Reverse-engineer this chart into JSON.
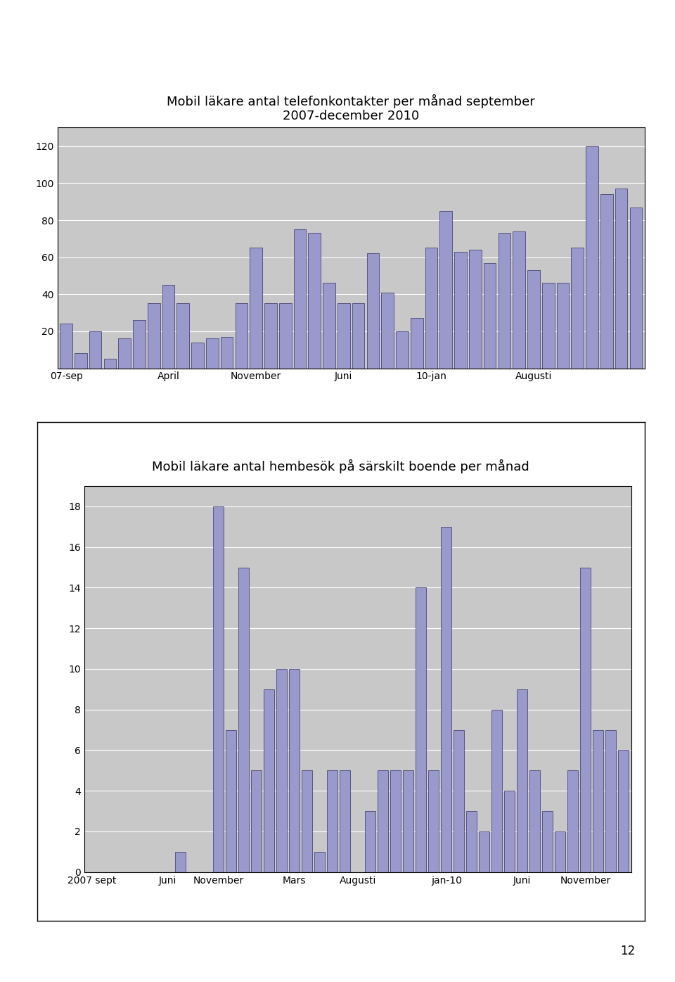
{
  "chart1": {
    "title": "Mobil läkare antal telefonkontakter per månad september\n2007-december 2010",
    "values": [
      24,
      8,
      20,
      5,
      16,
      26,
      35,
      45,
      35,
      14,
      16,
      17,
      35,
      65,
      35,
      35,
      75,
      73,
      46,
      35,
      35,
      62,
      41,
      20,
      27,
      65,
      85,
      63,
      64,
      57,
      73,
      74,
      53,
      46,
      46,
      65,
      120,
      94,
      97,
      87
    ],
    "xtick_labels": [
      "07-sep",
      "April",
      "November",
      "Juni",
      "10-jan",
      "Augusti"
    ],
    "xtick_positions": [
      0,
      7,
      13,
      19,
      25,
      32
    ],
    "ylim": [
      0,
      130
    ],
    "yticks": [
      20,
      40,
      60,
      80,
      100,
      120
    ],
    "bar_color": "#9999cc",
    "bar_edge_color": "#333366",
    "bg_color": "#c8c8c8",
    "title_fontsize": 13
  },
  "chart2": {
    "title": "Mobil läkare antal hembesök på särskilt boende per månad",
    "values": [
      0,
      0,
      0,
      0,
      0,
      0,
      0,
      1,
      0,
      0,
      18,
      7,
      15,
      5,
      9,
      10,
      10,
      5,
      1,
      5,
      5,
      0,
      3,
      5,
      5,
      5,
      14,
      5,
      17,
      7,
      3,
      2,
      8,
      4,
      9,
      5,
      3,
      2,
      5,
      15,
      7,
      7,
      6
    ],
    "xtick_labels": [
      "2007 sept",
      "Juni",
      "November",
      "Mars",
      "Augusti",
      "jan-10",
      "Juni",
      "November"
    ],
    "xtick_positions": [
      0,
      6,
      10,
      16,
      21,
      28,
      34,
      39
    ],
    "ylim": [
      0,
      19
    ],
    "yticks": [
      0,
      2,
      4,
      6,
      8,
      10,
      12,
      14,
      16,
      18
    ],
    "bar_color": "#9999cc",
    "bar_edge_color": "#333366",
    "bg_color": "#c8c8c8",
    "title_fontsize": 13
  },
  "page_number": "12",
  "page_bg": "#ffffff"
}
